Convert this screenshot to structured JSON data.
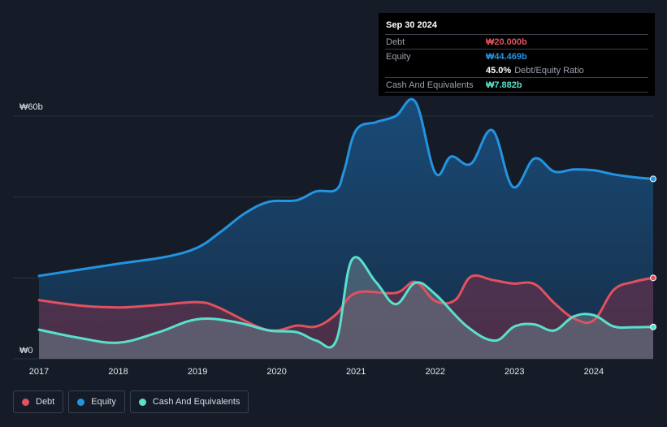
{
  "tooltip": {
    "date": "Sep 30 2024",
    "rows": [
      {
        "label": "Debt",
        "value": "₩20.000b",
        "color": "#e2515f"
      },
      {
        "label": "Equity",
        "value": "₩44.469b",
        "color": "#2394df"
      },
      {
        "label": "",
        "value": "45.0%",
        "sub": "Debt/Equity Ratio",
        "color": "#ffffff"
      },
      {
        "label": "Cash And Equivalents",
        "value": "₩7.882b",
        "color": "#59e0cd"
      }
    ]
  },
  "legend": [
    {
      "label": "Debt",
      "color": "#e2515f"
    },
    {
      "label": "Equity",
      "color": "#2394df"
    },
    {
      "label": "Cash And Equivalents",
      "color": "#59e0cd"
    }
  ],
  "chart_data": {
    "type": "area",
    "y_unit": "₩ billions",
    "ylim": [
      0,
      60
    ],
    "y_tick_labels": [
      {
        "value": 60,
        "label": "₩60b"
      },
      {
        "value": 0,
        "label": "₩0"
      }
    ],
    "gridlines": [
      0,
      20,
      40,
      60
    ],
    "xlim": [
      2017.0,
      2024.75
    ],
    "x_ticks": [
      2017,
      2018,
      2019,
      2020,
      2021,
      2022,
      2023,
      2024
    ],
    "series": [
      {
        "name": "Equity",
        "color": "#2394df",
        "points": [
          [
            2017.0,
            20.5
          ],
          [
            2018.0,
            23.5
          ],
          [
            2018.6,
            25.2
          ],
          [
            2019.0,
            27.5
          ],
          [
            2019.3,
            31.5
          ],
          [
            2019.6,
            36.0
          ],
          [
            2019.9,
            38.8
          ],
          [
            2020.25,
            39.2
          ],
          [
            2020.5,
            41.4
          ],
          [
            2020.75,
            41.8
          ],
          [
            2020.85,
            46.5
          ],
          [
            2021.0,
            56.5
          ],
          [
            2021.25,
            58.5
          ],
          [
            2021.5,
            60.0
          ],
          [
            2021.75,
            63.5
          ],
          [
            2022.0,
            46.0
          ],
          [
            2022.2,
            50.0
          ],
          [
            2022.45,
            48.2
          ],
          [
            2022.72,
            56.5
          ],
          [
            2022.98,
            42.5
          ],
          [
            2023.25,
            49.5
          ],
          [
            2023.5,
            46.3
          ],
          [
            2023.75,
            46.8
          ],
          [
            2024.0,
            46.6
          ],
          [
            2024.25,
            45.6
          ],
          [
            2024.5,
            44.9
          ],
          [
            2024.75,
            44.469
          ]
        ]
      },
      {
        "name": "Debt",
        "color": "#e2515f",
        "points": [
          [
            2017.0,
            14.5
          ],
          [
            2017.5,
            13.2
          ],
          [
            2018.0,
            12.7
          ],
          [
            2018.5,
            13.3
          ],
          [
            2019.0,
            14.0
          ],
          [
            2019.25,
            12.8
          ],
          [
            2019.75,
            8.0
          ],
          [
            2020.0,
            7.0
          ],
          [
            2020.25,
            8.2
          ],
          [
            2020.5,
            8.0
          ],
          [
            2020.75,
            11.0
          ],
          [
            2021.0,
            16.3
          ],
          [
            2021.5,
            16.3
          ],
          [
            2021.75,
            19.0
          ],
          [
            2022.0,
            14.3
          ],
          [
            2022.25,
            14.5
          ],
          [
            2022.45,
            20.3
          ],
          [
            2022.72,
            19.5
          ],
          [
            2022.98,
            18.6
          ],
          [
            2023.25,
            18.5
          ],
          [
            2023.5,
            13.8
          ],
          [
            2023.75,
            10.0
          ],
          [
            2024.0,
            9.5
          ],
          [
            2024.25,
            17.0
          ],
          [
            2024.5,
            19.0
          ],
          [
            2024.75,
            20.0
          ]
        ]
      },
      {
        "name": "Cash And Equivalents",
        "color": "#59e0cd",
        "points": [
          [
            2017.0,
            7.2
          ],
          [
            2017.5,
            5.2
          ],
          [
            2018.0,
            4.0
          ],
          [
            2018.5,
            6.5
          ],
          [
            2019.0,
            9.8
          ],
          [
            2019.5,
            9.0
          ],
          [
            2019.9,
            7.0
          ],
          [
            2020.25,
            6.6
          ],
          [
            2020.5,
            4.5
          ],
          [
            2020.75,
            4.5
          ],
          [
            2020.95,
            24.5
          ],
          [
            2021.25,
            19.0
          ],
          [
            2021.5,
            13.5
          ],
          [
            2021.75,
            18.8
          ],
          [
            2022.0,
            16.0
          ],
          [
            2022.4,
            8.0
          ],
          [
            2022.75,
            4.5
          ],
          [
            2023.0,
            8.0
          ],
          [
            2023.25,
            8.5
          ],
          [
            2023.5,
            7.0
          ],
          [
            2023.75,
            10.5
          ],
          [
            2024.0,
            10.8
          ],
          [
            2024.25,
            8.0
          ],
          [
            2024.5,
            7.8
          ],
          [
            2024.75,
            7.882
          ]
        ]
      }
    ]
  }
}
